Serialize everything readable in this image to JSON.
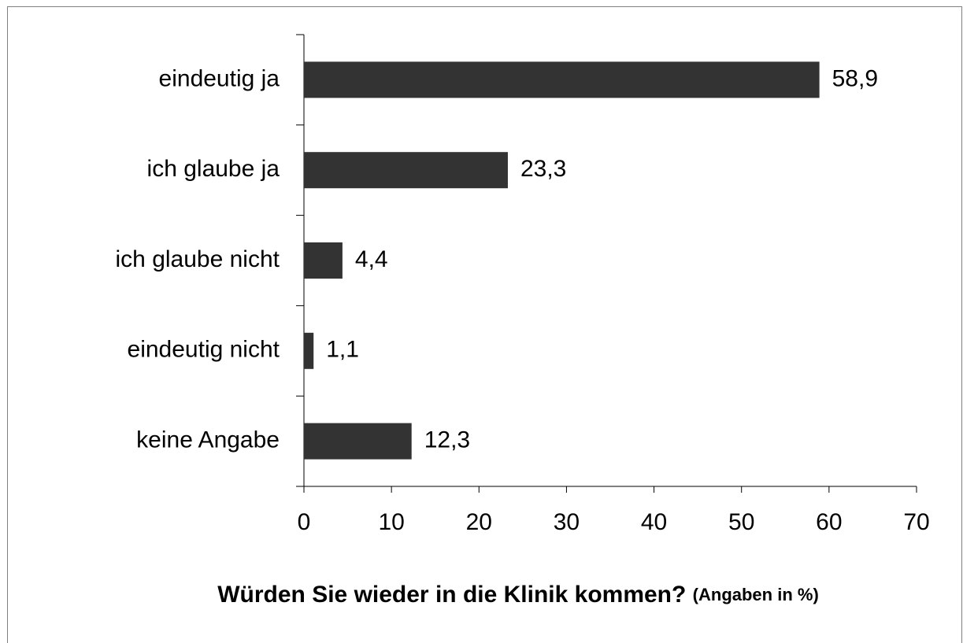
{
  "chart_data": {
    "type": "bar",
    "orientation": "horizontal",
    "categories": [
      "eindeutig ja",
      "ich glaube ja",
      "ich glaube nicht",
      "eindeutig nicht",
      "keine Angabe"
    ],
    "values": [
      58.9,
      23.3,
      4.4,
      1.1,
      12.3
    ],
    "value_labels": [
      "58,9",
      "23,3",
      "4,4",
      "1,1",
      "12,3"
    ],
    "color": "#333333",
    "xlim": [
      0,
      70
    ],
    "xticks": [
      0,
      10,
      20,
      30,
      40,
      50,
      60,
      70
    ],
    "xlabel": "Würden Sie wieder in die Klinik kommen?",
    "xlabel_note": "(Angaben in %)",
    "grid": false
  }
}
